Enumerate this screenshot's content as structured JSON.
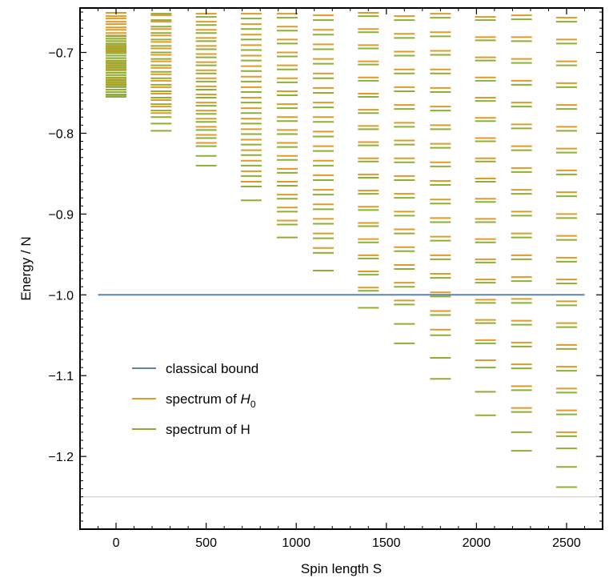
{
  "chart_data": {
    "type": "scatter",
    "title": "",
    "xlabel": "Spin length S",
    "ylabel": "Energy / N",
    "xlim": [
      -200,
      2700
    ],
    "ylim": [
      -1.29,
      -0.645
    ],
    "x_ticks": [
      {
        "value": 0,
        "label": "0"
      },
      {
        "value": 500,
        "label": "500"
      },
      {
        "value": 1000,
        "label": "1000"
      },
      {
        "value": 1500,
        "label": "1500"
      },
      {
        "value": 2000,
        "label": "2000"
      },
      {
        "value": 2500,
        "label": "2500"
      }
    ],
    "y_ticks": [
      {
        "value": -0.7,
        "label": "−0.7"
      },
      {
        "value": -0.8,
        "label": "−0.8"
      },
      {
        "value": -0.9,
        "label": "−0.9"
      },
      {
        "value": -1.0,
        "label": "−1.0"
      },
      {
        "value": -1.1,
        "label": "−1.1"
      },
      {
        "value": -1.2,
        "label": "−1.2"
      }
    ],
    "reference_line": {
      "y": -1.25,
      "color": "#cccccc"
    },
    "legend_position": "lower-left",
    "legend": [
      {
        "label": "classical bound",
        "label_main": "classical bound",
        "label_sub": "",
        "color": "#5f84a8"
      },
      {
        "label": "spectrum of H0",
        "label_main": "spectrum of H",
        "label_sub": "0",
        "color": "#e09a25"
      },
      {
        "label": "spectrum of H",
        "label_main": "spectrum of H",
        "label_sub": "",
        "color": "#8fae35"
      }
    ],
    "series": [
      {
        "name": "classical bound",
        "style": "line",
        "color": "#5f84a8",
        "x": [
          -100,
          2600
        ],
        "y": [
          -1.0,
          -1.0
        ]
      },
      {
        "name": "spectrum of H0",
        "style": "levels",
        "color": "#e09a25",
        "columns": [
          {
            "s": 0,
            "levels": [
              -0.651,
              -0.655,
              -0.658,
              -0.662,
              -0.665,
              -0.669,
              -0.672,
              -0.676,
              -0.679,
              -0.683,
              -0.686,
              -0.69,
              -0.693,
              -0.697,
              -0.7,
              -0.704,
              -0.707,
              -0.711,
              -0.714,
              -0.718,
              -0.721,
              -0.725,
              -0.728,
              -0.732,
              -0.735,
              -0.739,
              -0.742,
              -0.746,
              -0.749,
              -0.753
            ]
          },
          {
            "s": 250,
            "levels": [
              -0.654,
              -0.662,
              -0.671,
              -0.679,
              -0.687,
              -0.695,
              -0.703,
              -0.711,
              -0.719,
              -0.727,
              -0.735,
              -0.743,
              -0.751,
              -0.759,
              -0.767,
              -0.775
            ]
          },
          {
            "s": 500,
            "levels": [
              -0.652,
              -0.662,
              -0.672,
              -0.682,
              -0.692,
              -0.702,
              -0.712,
              -0.722,
              -0.732,
              -0.742,
              -0.752,
              -0.762,
              -0.772,
              -0.782,
              -0.792,
              -0.802,
              -0.812
            ]
          },
          {
            "s": 750,
            "levels": [
              -0.652,
              -0.665,
              -0.678,
              -0.691,
              -0.704,
              -0.717,
              -0.73,
              -0.743,
              -0.756,
              -0.769,
              -0.782,
              -0.795,
              -0.808,
              -0.821,
              -0.834,
              -0.847,
              -0.86
            ]
          },
          {
            "s": 950,
            "levels": [
              -0.652,
              -0.668,
              -0.684,
              -0.7,
              -0.716,
              -0.732,
              -0.748,
              -0.764,
              -0.78,
              -0.796,
              -0.812,
              -0.828,
              -0.844,
              -0.86,
              -0.876,
              -0.892,
              -0.908
            ]
          },
          {
            "s": 1150,
            "levels": [
              -0.654,
              -0.672,
              -0.69,
              -0.708,
              -0.726,
              -0.744,
              -0.762,
              -0.78,
              -0.798,
              -0.816,
              -0.834,
              -0.852,
              -0.87,
              -0.888,
              -0.906,
              -0.924,
              -0.942
            ]
          },
          {
            "s": 1400,
            "levels": [
              -0.651,
              -0.671,
              -0.691,
              -0.711,
              -0.731,
              -0.751,
              -0.771,
              -0.791,
              -0.811,
              -0.831,
              -0.851,
              -0.871,
              -0.891,
              -0.911,
              -0.931,
              -0.951,
              -0.971,
              -0.991
            ]
          },
          {
            "s": 1600,
            "levels": [
              -0.655,
              -0.677,
              -0.699,
              -0.721,
              -0.743,
              -0.765,
              -0.787,
              -0.809,
              -0.831,
              -0.853,
              -0.875,
              -0.897,
              -0.919,
              -0.941,
              -0.963,
              -0.985,
              -1.007
            ]
          },
          {
            "s": 1800,
            "levels": [
              -0.652,
              -0.675,
              -0.698,
              -0.721,
              -0.744,
              -0.767,
              -0.79,
              -0.813,
              -0.836,
              -0.859,
              -0.882,
              -0.905,
              -0.928,
              -0.951,
              -0.974,
              -0.997,
              -1.02,
              -1.043
            ]
          },
          {
            "s": 2050,
            "levels": [
              -0.656,
              -0.681,
              -0.706,
              -0.731,
              -0.756,
              -0.781,
              -0.806,
              -0.831,
              -0.856,
              -0.881,
              -0.906,
              -0.931,
              -0.956,
              -0.981,
              -1.006,
              -1.031,
              -1.056,
              -1.081
            ]
          },
          {
            "s": 2250,
            "levels": [
              -0.654,
              -0.681,
              -0.708,
              -0.735,
              -0.762,
              -0.789,
              -0.816,
              -0.843,
              -0.87,
              -0.897,
              -0.924,
              -0.951,
              -0.978,
              -1.005,
              -1.032,
              -1.059,
              -1.086,
              -1.113,
              -1.14
            ]
          },
          {
            "s": 2500,
            "levels": [
              -0.657,
              -0.684,
              -0.711,
              -0.738,
              -0.765,
              -0.792,
              -0.819,
              -0.846,
              -0.873,
              -0.9,
              -0.927,
              -0.954,
              -0.981,
              -1.008,
              -1.035,
              -1.062,
              -1.089,
              -1.116,
              -1.143,
              -1.17
            ]
          }
        ]
      },
      {
        "name": "spectrum of H",
        "style": "levels",
        "color": "#8fae35",
        "columns": [
          {
            "s": 0,
            "levels": [
              -0.68,
              -0.683,
              -0.686,
              -0.689,
              -0.692,
              -0.695,
              -0.698,
              -0.701,
              -0.704,
              -0.707,
              -0.71,
              -0.713,
              -0.716,
              -0.719,
              -0.722,
              -0.725,
              -0.728,
              -0.731,
              -0.734,
              -0.737,
              -0.74,
              -0.743,
              -0.746,
              -0.749,
              -0.752,
              -0.755
            ]
          },
          {
            "s": 250,
            "levels": [
              -0.652,
              -0.66,
              -0.668,
              -0.676,
              -0.684,
              -0.692,
              -0.7,
              -0.708,
              -0.716,
              -0.724,
              -0.732,
              -0.74,
              -0.748,
              -0.756,
              -0.764,
              -0.772,
              -0.78,
              -0.788,
              -0.797
            ]
          },
          {
            "s": 500,
            "levels": [
              -0.656,
              -0.666,
              -0.676,
              -0.686,
              -0.696,
              -0.706,
              -0.716,
              -0.726,
              -0.736,
              -0.746,
              -0.756,
              -0.766,
              -0.776,
              -0.786,
              -0.796,
              -0.806,
              -0.816,
              -0.828,
              -0.84
            ]
          },
          {
            "s": 750,
            "levels": [
              -0.658,
              -0.671,
              -0.684,
              -0.697,
              -0.71,
              -0.723,
              -0.736,
              -0.749,
              -0.762,
              -0.775,
              -0.788,
              -0.801,
              -0.814,
              -0.827,
              -0.84,
              -0.853,
              -0.866,
              -0.883
            ]
          },
          {
            "s": 950,
            "levels": [
              -0.657,
              -0.673,
              -0.689,
              -0.705,
              -0.721,
              -0.737,
              -0.753,
              -0.769,
              -0.785,
              -0.801,
              -0.817,
              -0.833,
              -0.849,
              -0.865,
              -0.881,
              -0.897,
              -0.913,
              -0.929
            ]
          },
          {
            "s": 1150,
            "levels": [
              -0.66,
              -0.678,
              -0.696,
              -0.714,
              -0.732,
              -0.75,
              -0.768,
              -0.786,
              -0.804,
              -0.822,
              -0.84,
              -0.858,
              -0.876,
              -0.894,
              -0.912,
              -0.93,
              -0.948,
              -0.97
            ]
          },
          {
            "s": 1400,
            "levels": [
              -0.655,
              -0.675,
              -0.695,
              -0.715,
              -0.735,
              -0.755,
              -0.775,
              -0.795,
              -0.815,
              -0.835,
              -0.855,
              -0.875,
              -0.895,
              -0.915,
              -0.935,
              -0.955,
              -0.975,
              -0.995,
              -1.016
            ]
          },
          {
            "s": 1600,
            "levels": [
              -0.66,
              -0.682,
              -0.704,
              -0.726,
              -0.748,
              -0.77,
              -0.792,
              -0.814,
              -0.836,
              -0.858,
              -0.88,
              -0.902,
              -0.924,
              -0.946,
              -0.968,
              -0.99,
              -1.012,
              -1.036,
              -1.06
            ]
          },
          {
            "s": 1800,
            "levels": [
              -0.657,
              -0.68,
              -0.703,
              -0.726,
              -0.749,
              -0.772,
              -0.795,
              -0.818,
              -0.841,
              -0.864,
              -0.887,
              -0.91,
              -0.933,
              -0.956,
              -0.979,
              -1.002,
              -1.025,
              -1.05,
              -1.078,
              -1.104
            ]
          },
          {
            "s": 2050,
            "levels": [
              -0.66,
              -0.685,
              -0.71,
              -0.735,
              -0.76,
              -0.785,
              -0.81,
              -0.835,
              -0.86,
              -0.885,
              -0.91,
              -0.935,
              -0.96,
              -0.985,
              -1.01,
              -1.035,
              -1.06,
              -1.09,
              -1.12,
              -1.149
            ]
          },
          {
            "s": 2250,
            "levels": [
              -0.659,
              -0.686,
              -0.713,
              -0.74,
              -0.767,
              -0.794,
              -0.821,
              -0.848,
              -0.875,
              -0.902,
              -0.929,
              -0.956,
              -0.983,
              -1.01,
              -1.037,
              -1.064,
              -1.091,
              -1.118,
              -1.145,
              -1.17,
              -1.193
            ]
          },
          {
            "s": 2500,
            "levels": [
              -0.662,
              -0.689,
              -0.716,
              -0.743,
              -0.77,
              -0.797,
              -0.824,
              -0.851,
              -0.878,
              -0.905,
              -0.932,
              -0.959,
              -0.986,
              -1.013,
              -1.04,
              -1.067,
              -1.094,
              -1.121,
              -1.148,
              -1.175,
              -1.19,
              -1.213,
              -1.238
            ]
          }
        ]
      }
    ]
  }
}
